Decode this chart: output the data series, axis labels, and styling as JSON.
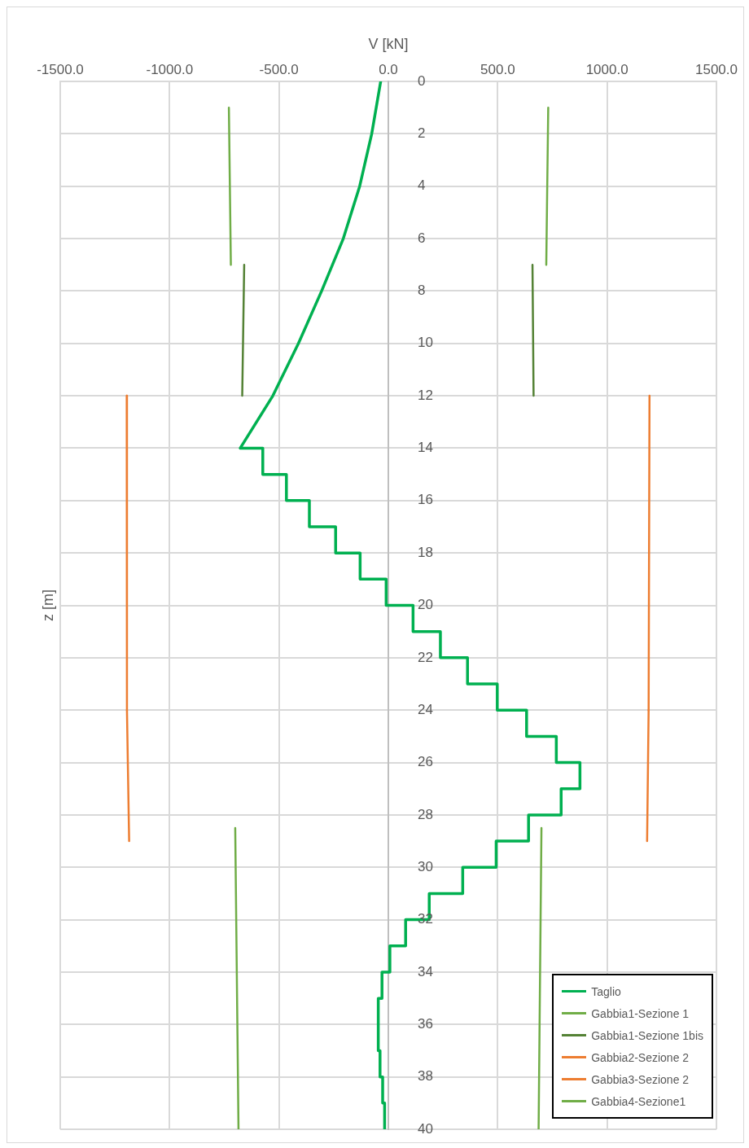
{
  "chart_data": {
    "type": "line",
    "xlabel": "V [kN]",
    "ylabel": "z [m]",
    "xlim": [
      -1500,
      1500
    ],
    "xticks": [
      {
        "value": -1500,
        "label": "-1500.0"
      },
      {
        "value": -1000,
        "label": "-1000.0"
      },
      {
        "value": -500,
        "label": "-500.0"
      },
      {
        "value": 0,
        "label": "0.0"
      },
      {
        "value": 500,
        "label": "500.0"
      },
      {
        "value": 1000,
        "label": "1000.0"
      },
      {
        "value": 1500,
        "label": "1500.0"
      }
    ],
    "ylim": [
      40,
      0
    ],
    "yticks": [
      0,
      2,
      4,
      6,
      8,
      10,
      12,
      14,
      16,
      18,
      20,
      22,
      24,
      26,
      28,
      30,
      32,
      34,
      36,
      38,
      40
    ],
    "grid": true,
    "legend": "bottom right",
    "marker": "none",
    "line_style": "solid",
    "series": [
      {
        "name": "Taglio",
        "color": "#00b050",
        "x": [
          -35,
          -76,
          -131,
          -206,
          -305,
          -411,
          -528,
          -677,
          -574,
          -574,
          -466,
          -466,
          -361,
          -361,
          -241,
          -241,
          -129,
          -129,
          -10,
          -10,
          113,
          113,
          238,
          238,
          362,
          362,
          498,
          498,
          632,
          632,
          768,
          768,
          876,
          876,
          790,
          790,
          641,
          641,
          493,
          493,
          340,
          340,
          187,
          187,
          79,
          79,
          7,
          7,
          -29,
          -29,
          -46,
          -46,
          -38,
          -38,
          -26,
          -26,
          -17,
          -17
        ],
        "values": [
          0,
          2,
          4,
          6,
          8,
          10,
          12,
          14,
          14,
          15,
          15,
          16,
          16,
          17,
          17,
          18,
          18,
          19,
          19,
          20,
          20,
          21,
          21,
          22,
          22,
          23,
          23,
          24,
          24,
          25,
          25,
          26,
          26,
          27,
          27,
          28,
          28,
          29,
          29,
          30,
          30,
          31,
          31,
          32,
          32,
          33,
          33,
          34,
          34,
          35,
          35,
          37,
          37,
          38,
          38,
          39,
          39,
          40
        ]
      },
      {
        "name": "Gabbia1-Sezione 1",
        "color": "#70ad47",
        "x": [
          -729,
          -720,
          null,
          731,
          722
        ],
        "values": [
          1,
          7,
          null,
          1,
          7
        ]
      },
      {
        "name": "Gabbia1-Sezione 1bis",
        "color": "#548235",
        "x": [
          -659,
          -668,
          null,
          659,
          664
        ],
        "values": [
          7,
          12,
          null,
          7,
          12
        ]
      },
      {
        "name": "Gabbia2-Sezione 2",
        "color": "#ed7d31",
        "x": [
          -1196,
          -1195,
          null,
          1194,
          1190
        ],
        "values": [
          12,
          24,
          null,
          12,
          24
        ]
      },
      {
        "name": "Gabbia3-Sezione 2",
        "color": "#ed7d31",
        "x": [
          -1195,
          -1185,
          null,
          1190,
          1183
        ],
        "values": [
          24,
          29,
          null,
          24,
          29
        ]
      },
      {
        "name": "Gabbia4-Sezione1",
        "color": "#70ad47",
        "x": [
          -700,
          -685,
          null,
          700,
          687
        ],
        "values": [
          28.5,
          40,
          null,
          28.5,
          40
        ]
      }
    ]
  }
}
